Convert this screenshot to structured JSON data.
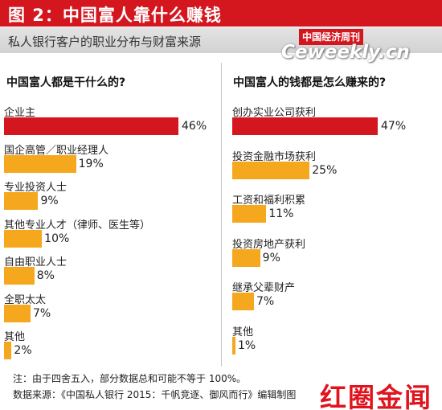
{
  "header": {
    "title": "图 2：中国富人靠什么赚钱",
    "subtitle": "私人银行客户的职业分布与财富来源"
  },
  "watermark": {
    "brand_cn": "中国经济周刊",
    "brand_url": "Ceweekly.cn"
  },
  "colors": {
    "red": "#d4161f",
    "orange": "#f5a81e"
  },
  "chart_data": [
    {
      "type": "bar",
      "title": "中国富人都是干什么的?",
      "categories": [
        "企业主",
        "国企高管／职业经理人",
        "专业投资人士",
        "其他专业人才（律师、医生等）",
        "自由职业人士",
        "全职太太",
        "其他"
      ],
      "values": [
        46,
        19,
        9,
        10,
        8,
        7,
        2
      ],
      "value_labels": [
        "46%",
        "19%",
        "9%",
        "10%",
        "8%",
        "7%",
        "2%"
      ],
      "highlight_color": "#d4161f",
      "bar_color": "#f5a81e"
    },
    {
      "type": "bar",
      "title": "中国富人的钱都是怎么赚来的?",
      "categories": [
        "创办实业公司获利",
        "投资金融市场获利",
        "工资和福利积累",
        "投资房地产获利",
        "继承父辈财产",
        "其他"
      ],
      "values": [
        47,
        25,
        11,
        9,
        7,
        1
      ],
      "value_labels": [
        "47%",
        "25%",
        "11%",
        "9%",
        "7%",
        "1%"
      ],
      "highlight_color": "#d4161f",
      "bar_color": "#f5a81e"
    }
  ],
  "footnote": {
    "note": "注：由于四舍五入，部分数据总和可能不等于 100%。",
    "source": "数据来源：《中国私人银行 2015：千帆竞逐、御风而行》编辑制图"
  },
  "logo": {
    "text": "红圈金闻"
  }
}
